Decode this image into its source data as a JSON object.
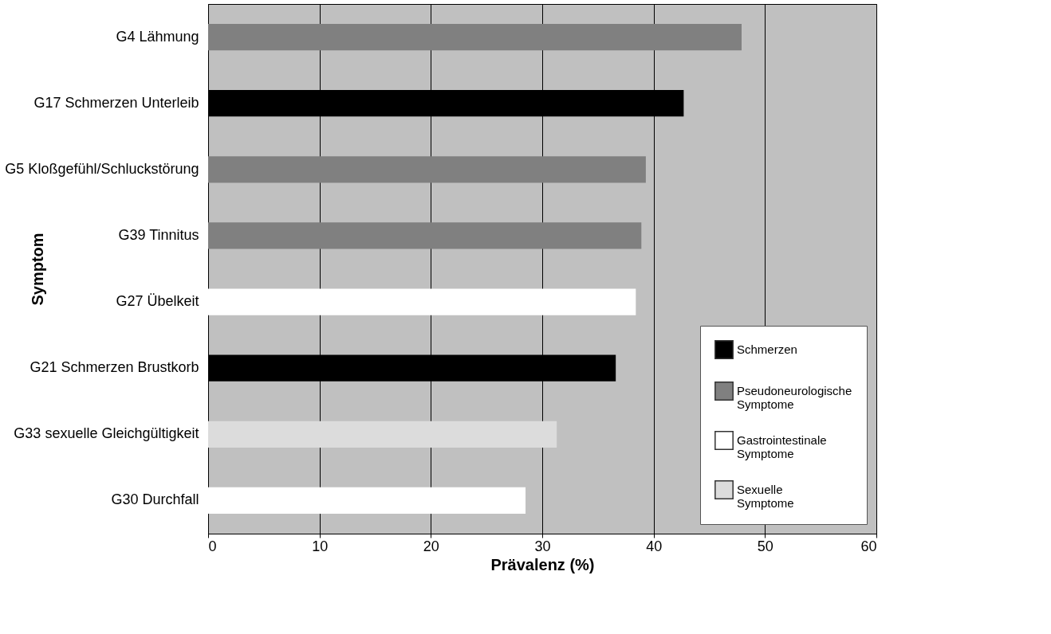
{
  "chart_data": {
    "type": "bar",
    "orientation": "horizontal",
    "xlabel": "Prävalenz (%)",
    "ylabel": "Symptom",
    "categories": [
      "G4 Lähmung",
      "G17 Schmerzen Unterleib",
      "G5 Kloßgefühl/Schluckstörung",
      "G39 Tinnitus",
      "G27 Übelkeit",
      "G21 Schmerzen Brustkorb",
      "G33 sexuelle Gleichgültigkeit",
      "G30 Durchfall"
    ],
    "series": [
      {
        "name": "Schmerzen",
        "color": "#000000",
        "values": [
          null,
          42.7,
          null,
          null,
          null,
          36.6,
          null,
          null
        ]
      },
      {
        "name": "Pseudoneurologische Symptome",
        "color": "#808080",
        "values": [
          47.9,
          null,
          39.3,
          38.9,
          null,
          null,
          null,
          null
        ]
      },
      {
        "name": "Gastrointestinale Symptome",
        "color": "#ffffff",
        "values": [
          null,
          null,
          null,
          null,
          38.4,
          null,
          null,
          28.5
        ]
      },
      {
        "name": "Sexuelle Symptome",
        "color": "#dcdcdc",
        "values": [
          null,
          null,
          null,
          null,
          null,
          null,
          31.3,
          null
        ]
      }
    ],
    "xlim": [
      0,
      60
    ],
    "xticks": [
      0,
      10,
      20,
      30,
      40,
      50,
      60
    ],
    "grid": "x",
    "legend": "bottom right"
  }
}
